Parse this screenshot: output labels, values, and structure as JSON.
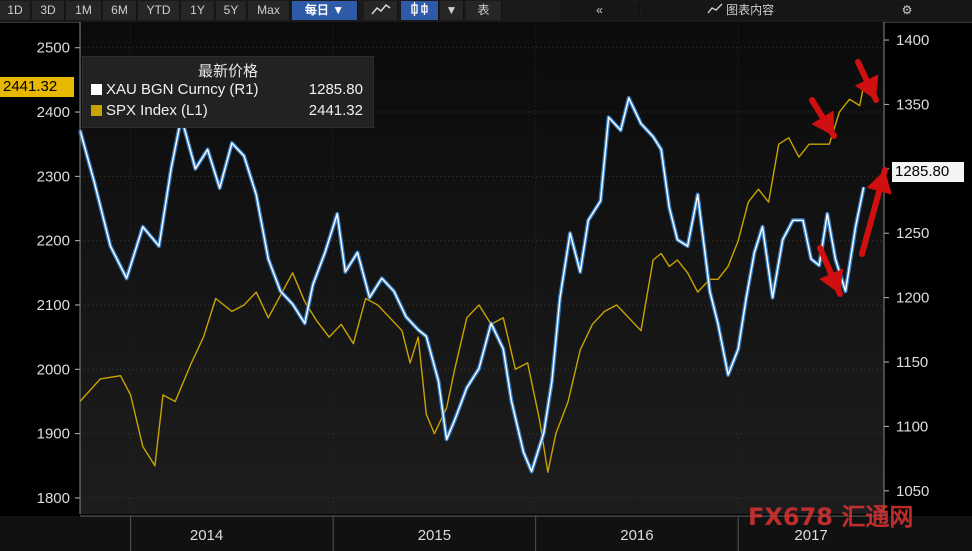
{
  "toolbar": {
    "periods": [
      "1D",
      "3D",
      "1M",
      "6M",
      "YTD",
      "1Y",
      "5Y",
      "Max"
    ],
    "frequency": "每日 ▼",
    "chart_icon": "line-chart-icon",
    "bar_icon": "candle-icon",
    "table_label": "表",
    "back_icon": "double-left-icon",
    "content_label": "图表内容",
    "settings_icon": "gear-icon"
  },
  "legend": {
    "title": "最新价格",
    "gold_label": "XAU BGN Curncy  (R1)",
    "gold_value": "1285.80",
    "spx_label": "SPX Index  (L1)",
    "spx_value": "2441.32"
  },
  "last_value_tags": {
    "left": "2441.32",
    "right": "1285.80"
  },
  "watermark": "FX678 汇通网",
  "colors": {
    "gold_line": "#ffffff",
    "gold_shadow": "#3b8fe0",
    "spx_line": "#c9a400",
    "arrow": "#d01010"
  },
  "chart_data": {
    "type": "line",
    "x_labels": [
      "2014",
      "2015",
      "2016",
      "2017"
    ],
    "left_axis": {
      "ticks": [
        1800,
        1900,
        2000,
        2100,
        2200,
        2300,
        2400,
        2500
      ],
      "ylim": [
        1775,
        2540
      ]
    },
    "right_axis": {
      "ticks": [
        1050,
        1100,
        1150,
        1200,
        1250,
        1300,
        1350,
        1400
      ],
      "ylim": [
        1032,
        1414
      ]
    },
    "xlim": [
      2013.75,
      2017.72
    ],
    "series": [
      {
        "name": "XAU BGN Curncy (R1)",
        "axis": "right",
        "x": [
          2013.75,
          2013.82,
          2013.9,
          2013.98,
          2014.06,
          2014.14,
          2014.2,
          2014.25,
          2014.32,
          2014.38,
          2014.44,
          2014.5,
          2014.56,
          2014.62,
          2014.68,
          2014.74,
          2014.8,
          2014.86,
          2014.9,
          2014.96,
          2015.02,
          2015.06,
          2015.12,
          2015.18,
          2015.24,
          2015.3,
          2015.36,
          2015.42,
          2015.46,
          2015.52,
          2015.56,
          2015.6,
          2015.66,
          2015.72,
          2015.78,
          2015.84,
          2015.88,
          2015.94,
          2015.98,
          2016.04,
          2016.08,
          2016.12,
          2016.17,
          2016.22,
          2016.26,
          2016.32,
          2016.36,
          2016.42,
          2016.46,
          2016.52,
          2016.58,
          2016.62,
          2016.66,
          2016.7,
          2016.75,
          2016.8,
          2016.86,
          2016.9,
          2016.95,
          2017.0,
          2017.04,
          2017.08,
          2017.12,
          2017.17,
          2017.22,
          2017.27,
          2017.32,
          2017.36,
          2017.4,
          2017.44,
          2017.48,
          2017.53,
          2017.58,
          2017.62
        ],
        "y": [
          1330,
          1290,
          1240,
          1215,
          1255,
          1240,
          1300,
          1340,
          1300,
          1315,
          1285,
          1320,
          1310,
          1280,
          1230,
          1205,
          1195,
          1180,
          1210,
          1235,
          1265,
          1220,
          1235,
          1200,
          1215,
          1205,
          1185,
          1175,
          1170,
          1135,
          1090,
          1105,
          1130,
          1145,
          1180,
          1160,
          1120,
          1080,
          1065,
          1095,
          1135,
          1200,
          1250,
          1220,
          1260,
          1275,
          1340,
          1330,
          1355,
          1335,
          1325,
          1315,
          1270,
          1245,
          1240,
          1280,
          1205,
          1180,
          1140,
          1160,
          1200,
          1235,
          1255,
          1200,
          1245,
          1260,
          1260,
          1230,
          1225,
          1265,
          1230,
          1205,
          1255,
          1285.8
        ]
      },
      {
        "name": "SPX Index (L1)",
        "axis": "left",
        "x": [
          2013.75,
          2013.85,
          2013.95,
          2014.0,
          2014.06,
          2014.12,
          2014.16,
          2014.22,
          2014.3,
          2014.36,
          2014.42,
          2014.5,
          2014.56,
          2014.62,
          2014.68,
          2014.74,
          2014.8,
          2014.86,
          2014.92,
          2014.98,
          2015.04,
          2015.1,
          2015.16,
          2015.22,
          2015.28,
          2015.34,
          2015.38,
          2015.42,
          2015.46,
          2015.5,
          2015.56,
          2015.6,
          2015.66,
          2015.72,
          2015.78,
          2015.84,
          2015.9,
          2015.96,
          2016.02,
          2016.06,
          2016.1,
          2016.16,
          2016.22,
          2016.28,
          2016.34,
          2016.4,
          2016.46,
          2016.52,
          2016.58,
          2016.62,
          2016.66,
          2016.7,
          2016.75,
          2016.8,
          2016.86,
          2016.9,
          2016.95,
          2017.0,
          2017.05,
          2017.1,
          2017.15,
          2017.2,
          2017.25,
          2017.3,
          2017.35,
          2017.4,
          2017.45,
          2017.5,
          2017.55,
          2017.6,
          2017.62
        ],
        "y": [
          1950,
          1985,
          1990,
          1960,
          1880,
          1850,
          1960,
          1950,
          2010,
          2050,
          2110,
          2090,
          2100,
          2120,
          2080,
          2115,
          2150,
          2105,
          2075,
          2050,
          2070,
          2040,
          2110,
          2100,
          2080,
          2060,
          2010,
          2050,
          1930,
          1900,
          1940,
          2000,
          2080,
          2100,
          2070,
          2080,
          2000,
          2010,
          1920,
          1840,
          1900,
          1950,
          2030,
          2070,
          2090,
          2100,
          2080,
          2060,
          2170,
          2180,
          2160,
          2170,
          2150,
          2120,
          2140,
          2140,
          2160,
          2200,
          2260,
          2280,
          2260,
          2350,
          2360,
          2330,
          2350,
          2350,
          2350,
          2400,
          2420,
          2410,
          2441.32
        ]
      }
    ]
  }
}
